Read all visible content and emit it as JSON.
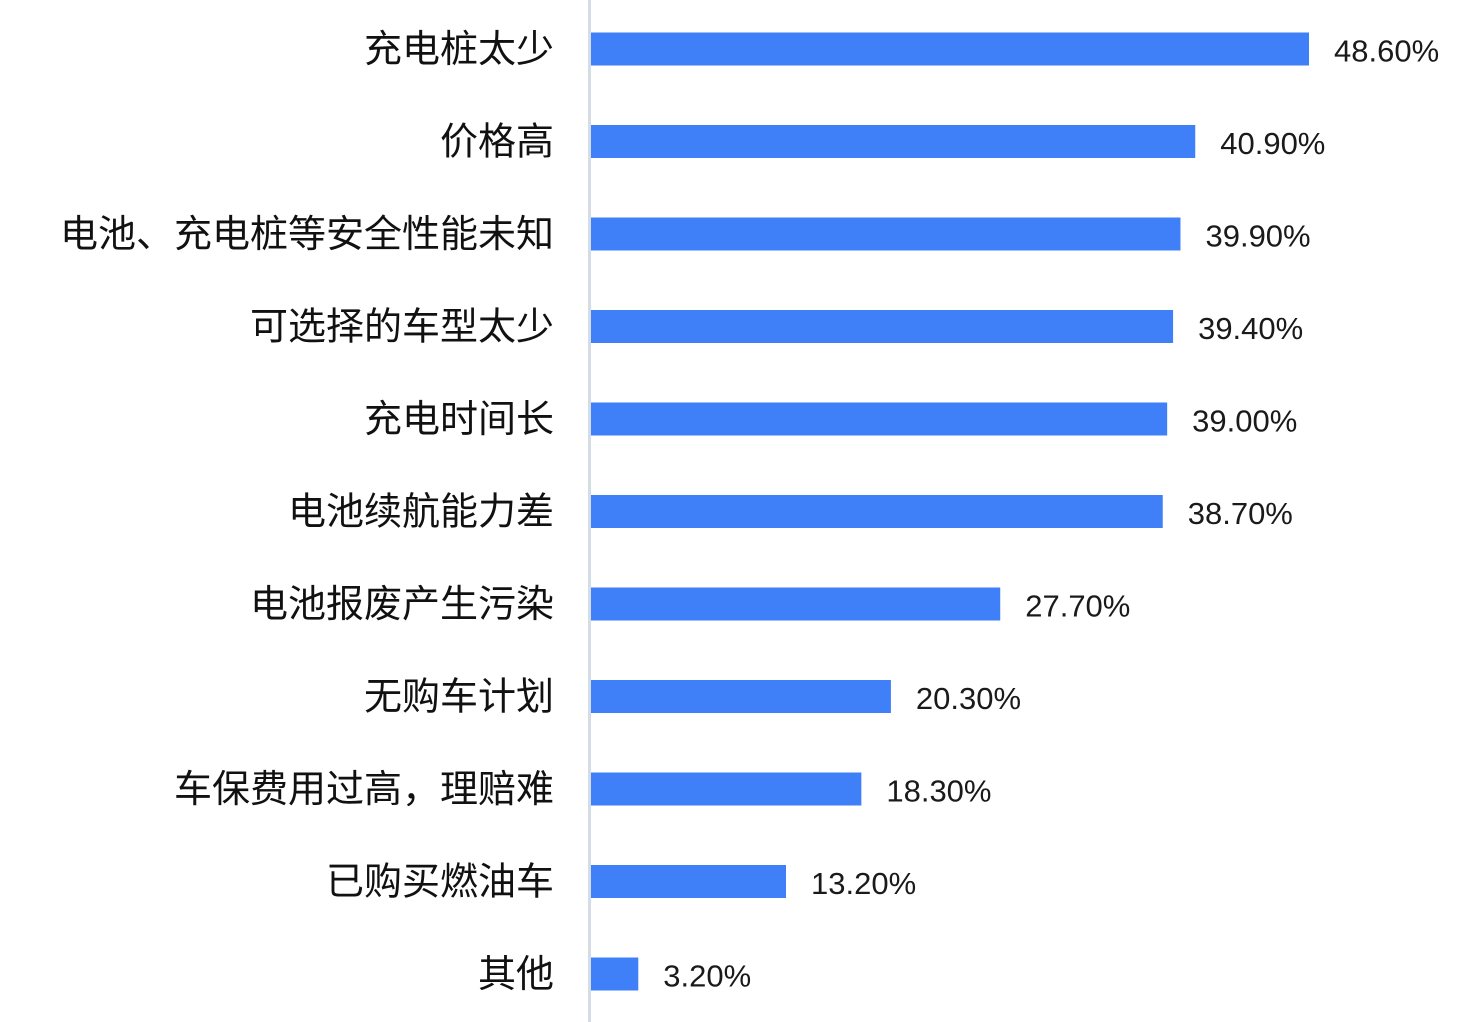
{
  "chart_data": {
    "type": "bar",
    "orientation": "horizontal",
    "categories": [
      "充电桩太少",
      "价格高",
      "电池、充电桩等安全性能未知",
      "可选择的车型太少",
      "充电时间长",
      "电池续航能力差",
      "电池报废产生污染",
      "无购车计划",
      "车保费用过高，理赔难",
      "已购买燃油车",
      "其他"
    ],
    "values": [
      48.6,
      40.9,
      39.9,
      39.4,
      39.0,
      38.7,
      27.7,
      20.3,
      18.3,
      13.2,
      3.2
    ],
    "value_labels": [
      "48.60%",
      "40.90%",
      "39.90%",
      "39.40%",
      "39.00%",
      "38.70%",
      "27.70%",
      "20.30%",
      "18.30%",
      "13.20%",
      "3.20%"
    ],
    "unit": "%",
    "xlim": [
      0,
      48.6
    ],
    "bar_color": "#3f7ff7",
    "axis_color": "#d4dde6",
    "grid": false,
    "legend": "none"
  }
}
